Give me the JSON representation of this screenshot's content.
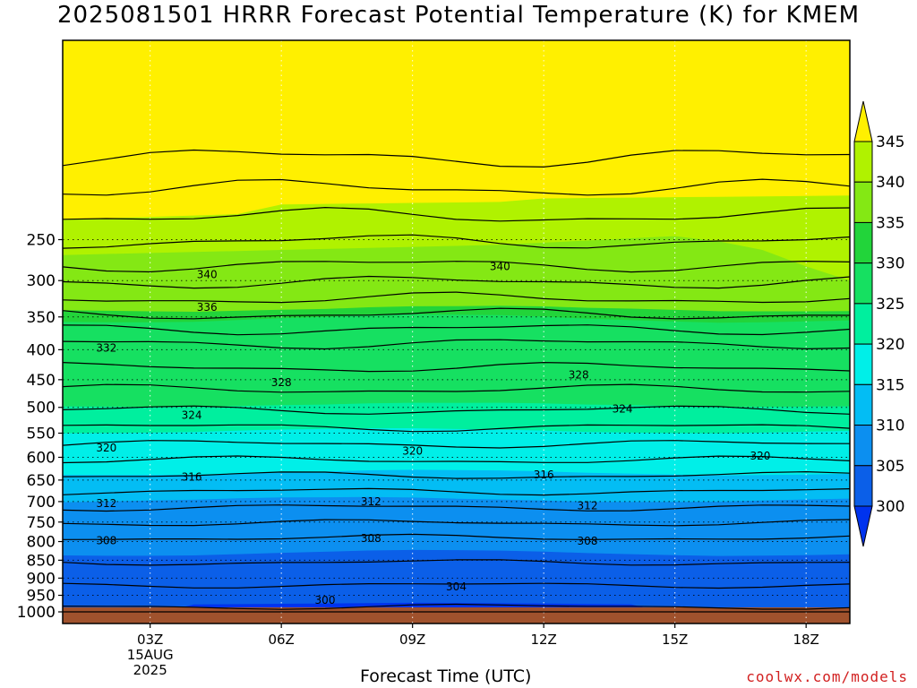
{
  "title": "2025081501 HRRR Forecast Potential Temperature (K) for KMEM",
  "credit": "coolwx.com/models",
  "chart_data": {
    "type": "heatmap",
    "title": "2025081501 HRRR Forecast Potential Temperature (K) for KMEM",
    "xlabel": "Forecast Time (UTC)",
    "ylabel": "",
    "x_ticks": [
      "03Z",
      "06Z",
      "09Z",
      "12Z",
      "15Z",
      "18Z"
    ],
    "x_date_label": [
      "15AUG",
      "2025"
    ],
    "y_ticks": [
      250,
      300,
      350,
      400,
      450,
      500,
      550,
      600,
      650,
      700,
      750,
      800,
      850,
      900,
      950,
      1000
    ],
    "xlim_hours_utc": [
      1,
      19
    ],
    "ylim_hpa": [
      200,
      1010
    ],
    "grid": true,
    "colorbar": {
      "levels": [
        300,
        305,
        310,
        315,
        320,
        325,
        330,
        335,
        340,
        345
      ],
      "colors": [
        "#0033ee",
        "#0b5fe8",
        "#0c8ff0",
        "#03bdf4",
        "#00efe8",
        "#00ef9e",
        "#16e061",
        "#22d43a",
        "#84e814",
        "#b0f200",
        "#fff000"
      ]
    },
    "contour_labels": [
      {
        "value": 340,
        "time_utc": 11.0,
        "pressure_hpa": 282
      },
      {
        "value": 340,
        "time_utc": 4.3,
        "pressure_hpa": 292
      },
      {
        "value": 336,
        "time_utc": 4.3,
        "pressure_hpa": 336
      },
      {
        "value": 332,
        "time_utc": 2.0,
        "pressure_hpa": 397
      },
      {
        "value": 328,
        "time_utc": 6.0,
        "pressure_hpa": 455
      },
      {
        "value": 328,
        "time_utc": 12.8,
        "pressure_hpa": 442
      },
      {
        "value": 324,
        "time_utc": 3.95,
        "pressure_hpa": 515
      },
      {
        "value": 324,
        "time_utc": 13.8,
        "pressure_hpa": 503
      },
      {
        "value": 320,
        "time_utc": 2.0,
        "pressure_hpa": 580
      },
      {
        "value": 320,
        "time_utc": 9.0,
        "pressure_hpa": 587
      },
      {
        "value": 320,
        "time_utc": 16.95,
        "pressure_hpa": 597
      },
      {
        "value": 316,
        "time_utc": 3.95,
        "pressure_hpa": 643
      },
      {
        "value": 316,
        "time_utc": 12.0,
        "pressure_hpa": 638
      },
      {
        "value": 312,
        "time_utc": 2.0,
        "pressure_hpa": 705
      },
      {
        "value": 312,
        "time_utc": 8.05,
        "pressure_hpa": 700
      },
      {
        "value": 312,
        "time_utc": 13.0,
        "pressure_hpa": 710
      },
      {
        "value": 308,
        "time_utc": 2.0,
        "pressure_hpa": 797
      },
      {
        "value": 308,
        "time_utc": 8.05,
        "pressure_hpa": 792
      },
      {
        "value": 308,
        "time_utc": 13.0,
        "pressure_hpa": 799
      },
      {
        "value": 304,
        "time_utc": 10.0,
        "pressure_hpa": 925
      },
      {
        "value": 300,
        "time_utc": 7.0,
        "pressure_hpa": 965
      }
    ]
  }
}
